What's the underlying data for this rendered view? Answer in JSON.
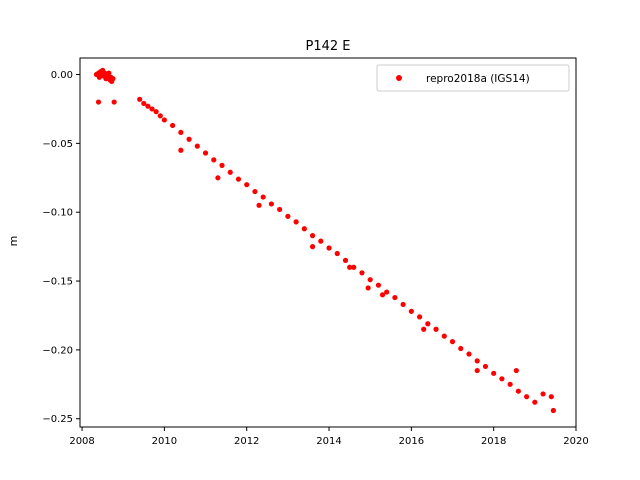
{
  "chart_data": {
    "type": "scatter",
    "title": "P142 E",
    "xlabel": "",
    "ylabel": "m",
    "xlim": [
      2007.95,
      2020.0
    ],
    "ylim": [
      -0.256,
      0.012
    ],
    "xticks": [
      2008,
      2010,
      2012,
      2014,
      2016,
      2018,
      2020
    ],
    "xtick_labels": [
      "2008",
      "2010",
      "2012",
      "2014",
      "2016",
      "2018",
      "2020"
    ],
    "yticks": [
      0.0,
      -0.05,
      -0.1,
      -0.15,
      -0.2,
      -0.25
    ],
    "ytick_labels": [
      "0.00",
      "−0.05",
      "−0.10",
      "−0.15",
      "−0.20",
      "−0.25"
    ],
    "grid": false,
    "legend_position": "top-right",
    "series": [
      {
        "name": "repro2018a (IGS14)",
        "color": "#ff0000",
        "marker": "circle",
        "x": [
          2008.35,
          2008.4,
          2008.42,
          2008.45,
          2008.48,
          2008.5,
          2008.52,
          2008.55,
          2008.58,
          2008.6,
          2008.63,
          2008.65,
          2008.68,
          2008.7,
          2008.72,
          2008.75,
          2008.4,
          2008.78,
          2009.4,
          2009.5,
          2009.6,
          2009.7,
          2009.8,
          2009.9,
          2010.0,
          2010.2,
          2010.4,
          2010.6,
          2010.8,
          2011.0,
          2011.2,
          2011.4,
          2011.6,
          2011.8,
          2012.0,
          2012.2,
          2012.4,
          2012.6,
          2012.8,
          2013.0,
          2013.2,
          2013.4,
          2013.6,
          2013.8,
          2014.0,
          2014.2,
          2014.4,
          2014.6,
          2014.8,
          2015.0,
          2015.2,
          2015.4,
          2015.6,
          2015.8,
          2016.0,
          2016.2,
          2016.4,
          2016.6,
          2016.8,
          2017.0,
          2017.2,
          2017.4,
          2017.6,
          2017.8,
          2018.0,
          2018.2,
          2018.4,
          2018.6,
          2018.8,
          2019.0,
          2019.2,
          2019.4,
          2014.95,
          2015.3,
          2018.55,
          2019.45,
          2010.4,
          2011.3,
          2012.3,
          2013.6,
          2014.5,
          2016.3,
          2017.6
        ],
        "y": [
          0.0,
          0.001,
          -0.002,
          0.002,
          0.0,
          0.003,
          -0.001,
          0.001,
          -0.003,
          0.0,
          -0.002,
          0.001,
          -0.004,
          -0.002,
          -0.005,
          -0.003,
          -0.02,
          -0.02,
          -0.018,
          -0.021,
          -0.023,
          -0.025,
          -0.027,
          -0.03,
          -0.033,
          -0.037,
          -0.042,
          -0.047,
          -0.052,
          -0.057,
          -0.062,
          -0.066,
          -0.071,
          -0.076,
          -0.08,
          -0.085,
          -0.089,
          -0.094,
          -0.098,
          -0.103,
          -0.107,
          -0.112,
          -0.117,
          -0.121,
          -0.126,
          -0.13,
          -0.135,
          -0.14,
          -0.144,
          -0.149,
          -0.153,
          -0.158,
          -0.162,
          -0.167,
          -0.172,
          -0.176,
          -0.181,
          -0.185,
          -0.19,
          -0.194,
          -0.199,
          -0.203,
          -0.208,
          -0.212,
          -0.217,
          -0.221,
          -0.225,
          -0.23,
          -0.234,
          -0.238,
          -0.232,
          -0.234,
          -0.155,
          -0.16,
          -0.215,
          -0.244,
          -0.055,
          -0.075,
          -0.095,
          -0.125,
          -0.14,
          -0.185,
          -0.215
        ]
      }
    ]
  }
}
